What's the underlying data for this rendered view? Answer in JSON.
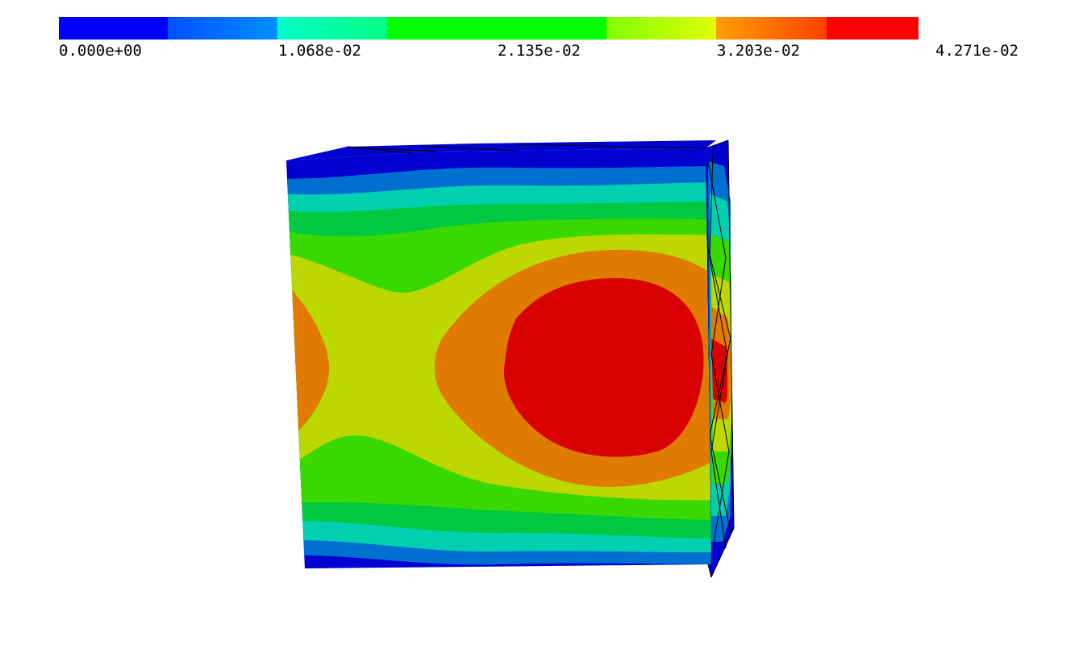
{
  "colorbar": {
    "tick_labels": [
      "0.000e+00",
      "1.068e-02",
      "2.135e-02",
      "3.203e-02",
      "4.271e-02"
    ],
    "min": 0.0,
    "max": 0.04271,
    "colors": {
      "blue": "#0000ff",
      "light_blue": "#0088ff",
      "cyan": "#00ffc8",
      "green": "#00ff00",
      "yellow_green": "#ccff00",
      "orange": "#ff8800",
      "red": "#ff0000"
    }
  },
  "model": {
    "contour_colors": [
      "#0000d0",
      "#0070d0",
      "#00d0b0",
      "#00c840",
      "#38d800",
      "#bcd800",
      "#e07a00",
      "#d80000"
    ]
  }
}
